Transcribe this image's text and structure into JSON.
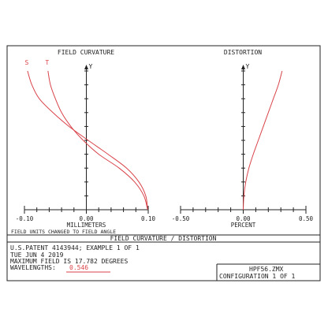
{
  "panels": {
    "left_title": "FIELD CURVATURE",
    "right_title": "DISTORTION",
    "note": "FIELD UNITS CHANGED TO FIELD ANGLE"
  },
  "footer": {
    "banner": "FIELD CURVATURE / DISTORTION",
    "lines": [
      "U.S.PATENT 4143944; EXAMPLE 1 OF 1",
      "TUE JUN 4 2019",
      "MAXIMUM FIELD IS 17.782 DEGREES"
    ],
    "wavelengths_label": "WAVELENGTHS:",
    "wavelength_value": "0.546",
    "file_name": "HPF56.ZMX",
    "configuration": "CONFIGURATION 1 OF 1"
  },
  "colors": {
    "curve": "#d9434a",
    "axis": "#222222",
    "frame": "#222222"
  },
  "chart_data": [
    {
      "type": "line",
      "title": "FIELD CURVATURE",
      "xlabel": "MILLIMETERS",
      "ylabel": "Y",
      "xlim": [
        -0.1,
        0.1
      ],
      "ylim": [
        0,
        1
      ],
      "xticks": [
        "-0.10",
        "0.00",
        "0.10"
      ],
      "y_minor_ticks": 10,
      "series": [
        {
          "name": "S",
          "x": [
            0.099,
            0.096,
            0.085,
            0.065,
            0.035,
            0.003,
            -0.028,
            -0.054,
            -0.076,
            -0.088,
            -0.095
          ],
          "y": [
            0.0,
            0.1,
            0.2,
            0.3,
            0.4,
            0.5,
            0.6,
            0.7,
            0.8,
            0.9,
            1.0
          ]
        },
        {
          "name": "T",
          "x": [
            0.099,
            0.093,
            0.078,
            0.053,
            0.02,
            -0.005,
            -0.025,
            -0.04,
            -0.05,
            -0.058,
            -0.062
          ],
          "y": [
            0.0,
            0.1,
            0.2,
            0.3,
            0.4,
            0.5,
            0.6,
            0.7,
            0.8,
            0.9,
            1.0
          ]
        }
      ]
    },
    {
      "type": "line",
      "title": "DISTORTION",
      "xlabel": "PERCENT",
      "ylabel": "Y",
      "xlim": [
        -0.5,
        0.5
      ],
      "ylim": [
        0,
        1
      ],
      "xticks": [
        "-0.50",
        "0.00",
        "0.50"
      ],
      "y_minor_ticks": 10,
      "series": [
        {
          "name": "",
          "x": [
            0.0,
            0.005,
            0.02,
            0.045,
            0.08,
            0.12,
            0.16,
            0.2,
            0.24,
            0.28,
            0.31
          ],
          "y": [
            0.0,
            0.1,
            0.2,
            0.3,
            0.4,
            0.5,
            0.6,
            0.7,
            0.8,
            0.9,
            1.0
          ]
        }
      ]
    }
  ]
}
